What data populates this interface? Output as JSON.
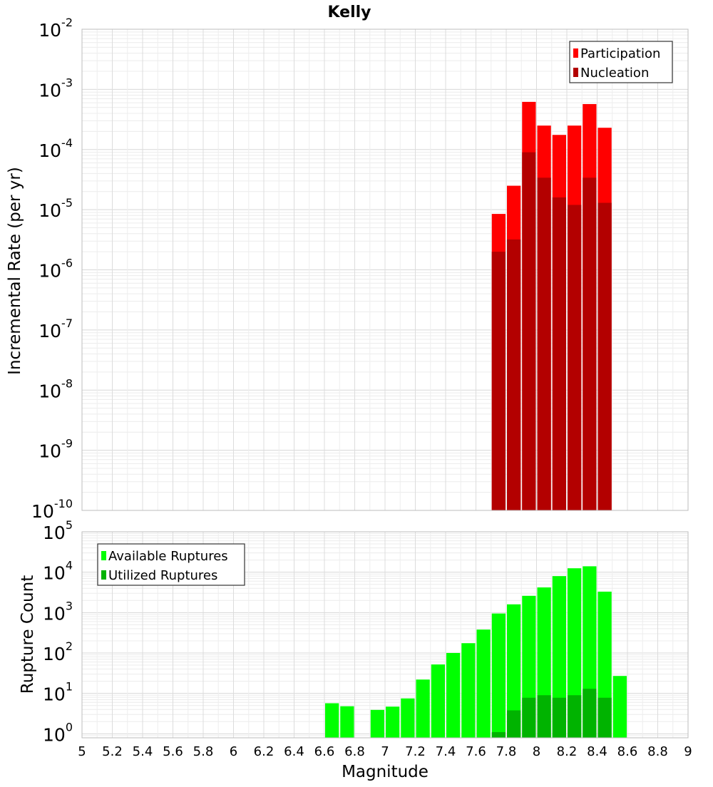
{
  "chart_data": {
    "type": "bar",
    "title": "Kelly",
    "xlabel": "Magnitude",
    "x_ticks": [
      "5",
      "5.2",
      "5.4",
      "5.6",
      "5.8",
      "6",
      "6.2",
      "6.4",
      "6.6",
      "6.8",
      "7",
      "7.2",
      "7.4",
      "7.6",
      "7.8",
      "8",
      "8.2",
      "8.4",
      "8.6",
      "8.8",
      "9"
    ],
    "xlim": [
      5,
      9
    ],
    "bin_width": 0.1,
    "grid": true,
    "panels": [
      {
        "ylabel": "Incremental Rate (per yr)",
        "y_scale": "log",
        "y_exp_range": [
          -10,
          -2
        ],
        "y_tick_base": "10",
        "y_tick_exponents": [
          "-2",
          "-3",
          "-4",
          "-5",
          "-6",
          "-7",
          "-8",
          "-9",
          "-10"
        ],
        "legend_position": "top-right",
        "series": [
          {
            "name": "Participation",
            "color": "#ff0000",
            "x": [
              7.75,
              7.85,
              7.95,
              8.05,
              8.15,
              8.25,
              8.35,
              8.45
            ],
            "values": [
              8.5e-06,
              2.5e-05,
              0.00062,
              0.00025,
              0.000175,
              0.00025,
              0.00057,
              0.00023
            ]
          },
          {
            "name": "Nucleation",
            "color": "#b30000",
            "x": [
              7.75,
              7.85,
              7.95,
              8.05,
              8.15,
              8.25,
              8.35,
              8.45
            ],
            "values": [
              2e-06,
              3.2e-06,
              9e-05,
              3.4e-05,
              1.6e-05,
              1.2e-05,
              3.4e-05,
              1.3e-05
            ]
          }
        ]
      },
      {
        "ylabel": "Rupture Count",
        "y_scale": "log",
        "y_exp_range": [
          -0.1,
          5
        ],
        "y_tick_base": "10",
        "y_tick_exponents": [
          "5",
          "4",
          "3",
          "2",
          "1",
          "0"
        ],
        "legend_position": "top-left",
        "series": [
          {
            "name": "Available Ruptures",
            "color": "#00ff00",
            "x": [
              6.65,
              6.75,
              6.95,
              7.05,
              7.15,
              7.25,
              7.35,
              7.45,
              7.55,
              7.65,
              7.75,
              7.85,
              7.95,
              8.05,
              8.15,
              8.25,
              8.35,
              8.45,
              8.55
            ],
            "values": [
              5.7,
              4.8,
              3.9,
              4.7,
              7.5,
              22,
              52,
              100,
              175,
              380,
              950,
              1600,
              2600,
              4200,
              8000,
              12500,
              14000,
              3300,
              27
            ]
          },
          {
            "name": "Utilized Ruptures",
            "color": "#00b300",
            "x": [
              7.75,
              7.85,
              7.95,
              8.05,
              8.15,
              8.25,
              8.35,
              8.45
            ],
            "values": [
              1.1,
              3.8,
              7.8,
              9.0,
              7.8,
              9.0,
              13,
              7.8
            ]
          }
        ]
      }
    ]
  }
}
